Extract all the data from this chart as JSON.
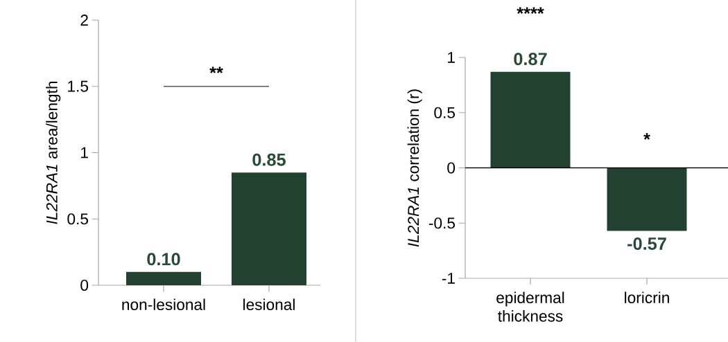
{
  "chart_data": [
    {
      "type": "bar",
      "categories": [
        "non-lesional",
        "lesional"
      ],
      "values": [
        0.1,
        0.85
      ],
      "color": "#224130",
      "value_labels": [
        "0.10",
        "0.85"
      ],
      "ylabel": "*IL22RA1* area/length",
      "ylim": [
        0,
        2
      ],
      "yticks": [
        0,
        0.5,
        1,
        1.5,
        2
      ],
      "annotations": [
        "**"
      ]
    },
    {
      "type": "bar",
      "categories": [
        "epidermal thickness",
        "loricrin"
      ],
      "values": [
        0.87,
        -0.57
      ],
      "color": "#224130",
      "value_labels": [
        "0.87",
        "-0.57"
      ],
      "ylabel": "*IL22RA1* correlation (r)",
      "ylim": [
        -1,
        1
      ],
      "yticks": [
        -1,
        -0.5,
        0,
        0.5,
        1
      ],
      "ref_lines": [
        {
          "axis": "y",
          "value": 0,
          "color": "#000000"
        }
      ],
      "annotations": [
        "****",
        "*"
      ]
    }
  ]
}
